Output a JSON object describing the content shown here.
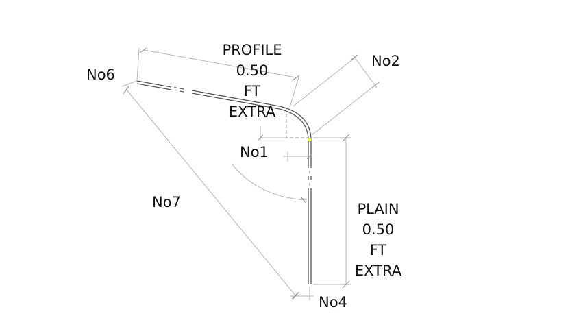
{
  "labels": {
    "no6": "No6",
    "no2": "No2",
    "no1": "No1",
    "no7": "No7",
    "no4": "No4",
    "profile": [
      "PROFILE",
      "0.50",
      "FT",
      "EXTRA"
    ],
    "plain": [
      "PLAIN",
      "0.50",
      "FT",
      "EXTRA"
    ]
  },
  "colors": {
    "background": "#ffffff",
    "text": "#111111",
    "dimension_line": "#b3b3b3",
    "bar": "#555555",
    "bend_point": "#e8f06a"
  }
}
